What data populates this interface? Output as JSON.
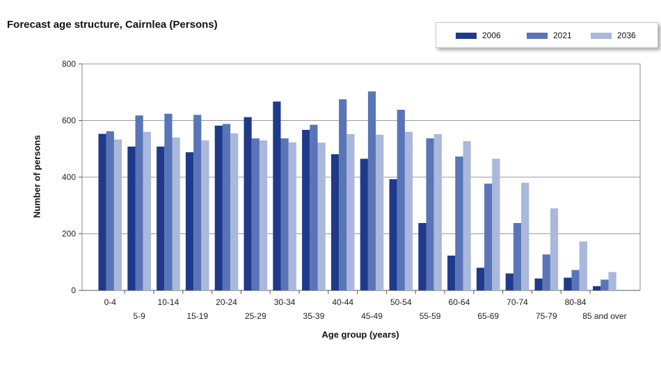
{
  "chart_data": {
    "type": "bar",
    "title": "Forecast age structure, Cairnlea (Persons)",
    "xlabel": "Age group (years)",
    "ylabel": "Number of persons",
    "ylim": [
      0,
      800
    ],
    "yticks": [
      0,
      200,
      400,
      600,
      800
    ],
    "grid": true,
    "legend_position": "top-right",
    "categories": [
      "0-4",
      "5-9",
      "10-14",
      "15-19",
      "20-24",
      "25-29",
      "30-34",
      "35-39",
      "40-44",
      "45-49",
      "50-54",
      "55-59",
      "60-64",
      "65-69",
      "70-74",
      "75-79",
      "80-84",
      "85 and over"
    ],
    "series": [
      {
        "name": "2006",
        "color": "#1f3a8a",
        "values": [
          553,
          508,
          508,
          488,
          582,
          612,
          667,
          567,
          481,
          465,
          393,
          238,
          123,
          80,
          60,
          42,
          45,
          15
        ]
      },
      {
        "name": "2021",
        "color": "#5a74b8",
        "values": [
          562,
          618,
          624,
          620,
          588,
          537,
          537,
          585,
          675,
          703,
          638,
          537,
          473,
          377,
          238,
          127,
          72,
          38
        ]
      },
      {
        "name": "2036",
        "color": "#a9b8db",
        "values": [
          533,
          560,
          540,
          530,
          555,
          530,
          523,
          522,
          552,
          550,
          560,
          552,
          527,
          465,
          380,
          290,
          173,
          65
        ]
      }
    ]
  }
}
